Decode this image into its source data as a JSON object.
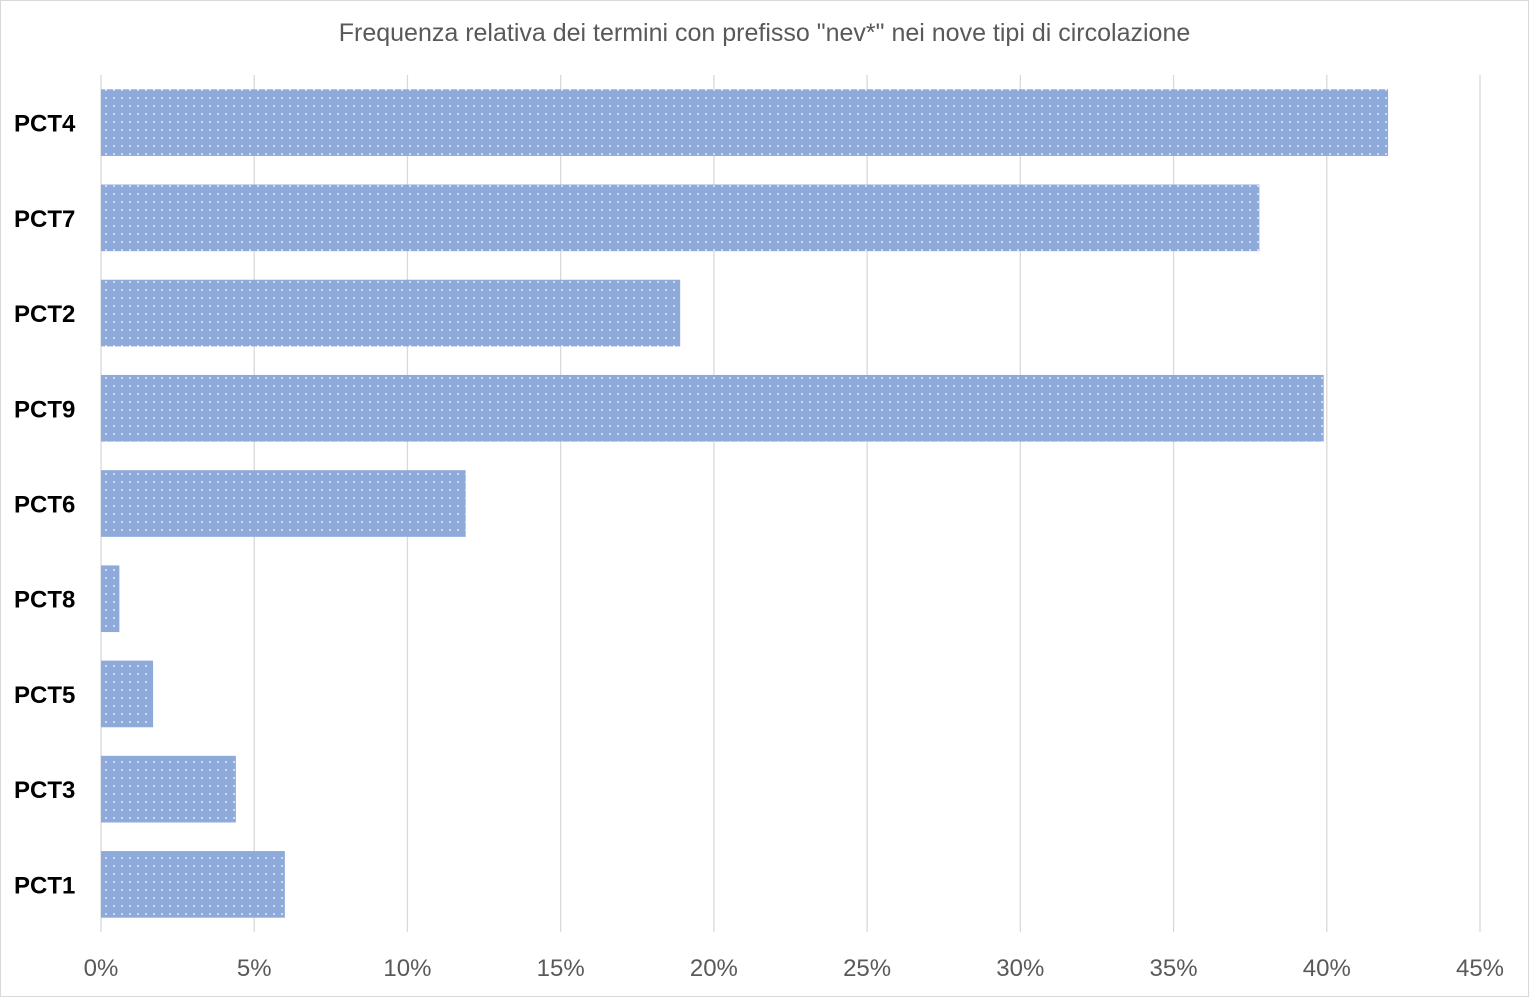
{
  "chart_data": {
    "type": "bar",
    "orientation": "horizontal",
    "title": "Frequenza relativa dei termini con prefisso \"nev*\" nei nove tipi di circolazione",
    "categories": [
      "PCT4",
      "PCT7",
      "PCT2",
      "PCT9",
      "PCT6",
      "PCT8",
      "PCT5",
      "PCT3",
      "PCT1"
    ],
    "values": [
      42.0,
      37.8,
      18.9,
      39.9,
      11.9,
      0.6,
      1.7,
      4.4,
      6.0
    ],
    "x_ticks": [
      "0%",
      "5%",
      "10%",
      "15%",
      "20%",
      "25%",
      "30%",
      "35%",
      "40%",
      "45%"
    ],
    "xlim": [
      0,
      45
    ],
    "grid": true,
    "colors": {
      "bar": "#8eaadb",
      "dots": "#ffffff",
      "grid": "#d9d9d9",
      "text": "#595959"
    }
  }
}
